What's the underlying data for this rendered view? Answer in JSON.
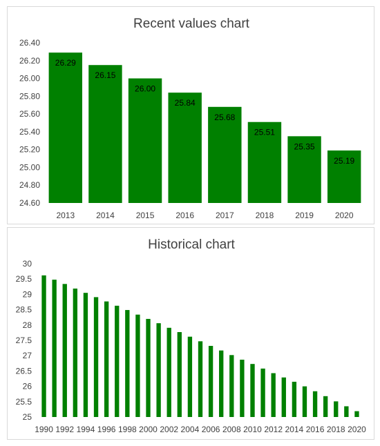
{
  "colors": {
    "bar": "#008000",
    "text": "#404040",
    "grid": "#d9d9d9"
  },
  "chart_data": [
    {
      "type": "bar",
      "title": "Recent values chart",
      "categories": [
        "2013",
        "2014",
        "2015",
        "2016",
        "2017",
        "2018",
        "2019",
        "2020"
      ],
      "values": [
        26.29,
        26.15,
        26.0,
        25.84,
        25.68,
        25.51,
        25.35,
        25.19
      ],
      "data_labels": [
        "26.29",
        "26.15",
        "26.00",
        "25.84",
        "25.68",
        "25.51",
        "25.35",
        "25.19"
      ],
      "ylim": [
        24.6,
        26.4
      ],
      "y_ticks": [
        "24.60",
        "24.80",
        "25.00",
        "25.20",
        "25.40",
        "25.60",
        "25.80",
        "26.00",
        "26.20",
        "26.40"
      ],
      "grid": false,
      "legend": "none"
    },
    {
      "type": "bar",
      "title": "Historical chart",
      "categories": [
        "1990",
        "1991",
        "1992",
        "1993",
        "1994",
        "1995",
        "1996",
        "1997",
        "1998",
        "1999",
        "2000",
        "2001",
        "2002",
        "2003",
        "2004",
        "2005",
        "2006",
        "2007",
        "2008",
        "2009",
        "2010",
        "2011",
        "2012",
        "2013",
        "2014",
        "2015",
        "2016",
        "2017",
        "2018",
        "2019",
        "2020"
      ],
      "x_tick_labels": [
        "1990",
        "1992",
        "1994",
        "1996",
        "1998",
        "2000",
        "2002",
        "2004",
        "2006",
        "2008",
        "2010",
        "2012",
        "2014",
        "2016",
        "2018",
        "2020"
      ],
      "values": [
        29.62,
        29.48,
        29.34,
        29.19,
        29.05,
        28.91,
        28.77,
        28.63,
        28.49,
        28.34,
        28.2,
        28.06,
        27.91,
        27.77,
        27.62,
        27.47,
        27.32,
        27.17,
        27.02,
        26.87,
        26.73,
        26.58,
        26.43,
        26.29,
        26.15,
        26.0,
        25.84,
        25.68,
        25.51,
        25.35,
        25.19
      ],
      "ylim": [
        25,
        30
      ],
      "y_ticks": [
        "25",
        "25.5",
        "26",
        "26.5",
        "27",
        "27.5",
        "28",
        "28.5",
        "29",
        "29.5",
        "30"
      ],
      "grid": false,
      "legend": "none"
    }
  ]
}
